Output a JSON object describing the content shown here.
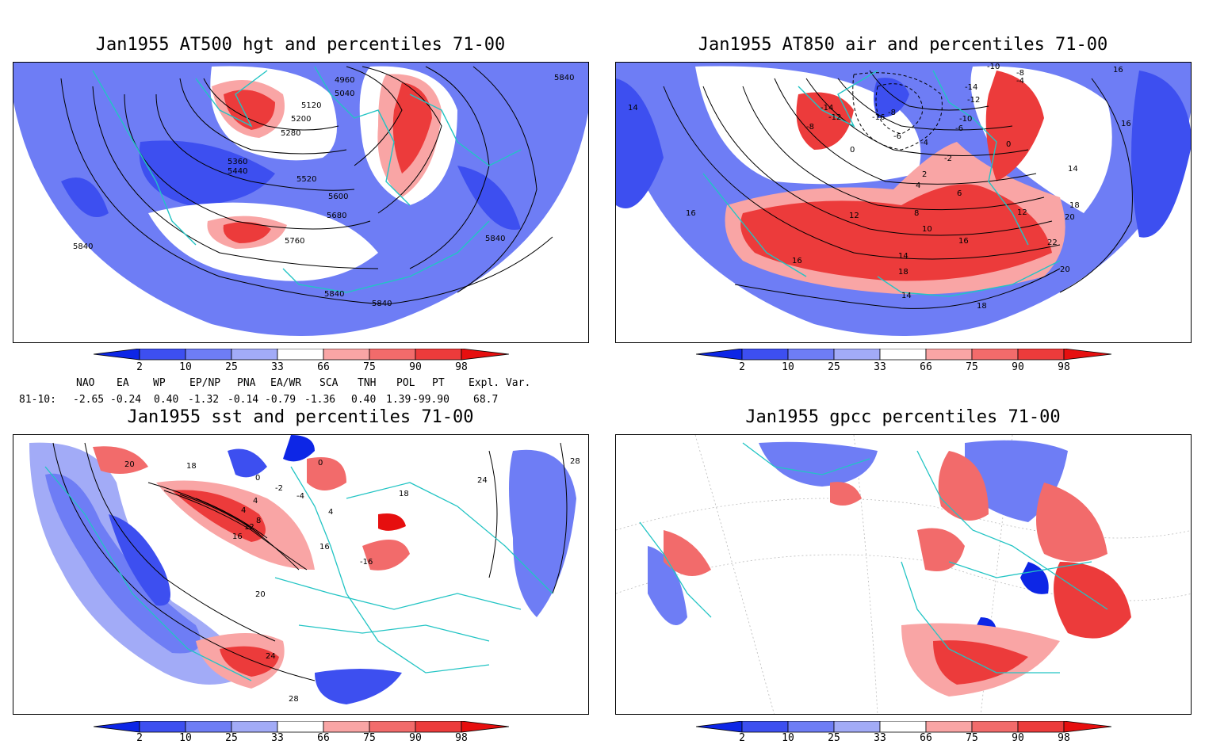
{
  "panels": [
    {
      "title": "Jan1955 AT500 hgt and percentiles 71-00",
      "contour_labels": [
        "4960",
        "5040",
        "5120",
        "5200",
        "5280",
        "5360",
        "5440",
        "5520",
        "5600",
        "5680",
        "5760",
        "5840",
        "5840",
        "5840",
        "5840",
        "5840"
      ]
    },
    {
      "title": "Jan1955 AT850 air and percentiles 71-00",
      "contour_labels": [
        "-10",
        "-8",
        "-14",
        "-12",
        "-4",
        "-14",
        "-12",
        "-16",
        "-8",
        "-10",
        "-6",
        "-8",
        "-4",
        "-6",
        "0",
        "-2",
        "2",
        "0",
        "4",
        "6",
        "8",
        "12",
        "12",
        "10",
        "16",
        "14",
        "14",
        "16",
        "18",
        "20",
        "20",
        "22",
        "18",
        "16",
        "14",
        "18",
        "16",
        "16",
        "14"
      ]
    },
    {
      "title": "Jan1955 sst and percentiles 71-00",
      "contour_labels": [
        "20",
        "18",
        "0",
        "4",
        "0",
        "-2",
        "-4",
        "4",
        "8",
        "12",
        "16",
        "4",
        "-16",
        "24",
        "20",
        "24",
        "28",
        "28",
        "16",
        "18"
      ]
    },
    {
      "title": "Jan1955 gpcc percentiles 71-00",
      "contour_labels": []
    }
  ],
  "colorbar": {
    "ticks": [
      "2",
      "10",
      "25",
      "33",
      "66",
      "75",
      "90",
      "98"
    ],
    "colors": [
      "#0d26e6",
      "#3d4ff0",
      "#6e7df5",
      "#a2abf7",
      "#ffffff",
      "#f9a5a5",
      "#f26b6b",
      "#ec3b3b",
      "#e60f0f"
    ]
  },
  "indices": {
    "headers": [
      "NAO",
      "EA",
      "WP",
      "EP/NP",
      "PNA",
      "EA/WR",
      "SCA",
      "TNH",
      "POL",
      "PT",
      "Expl. Var."
    ],
    "row_label": "81-10:",
    "values": [
      "-2.65",
      "-0.24",
      "0.40",
      "-1.32",
      "-0.14",
      "-0.79",
      "-1.36",
      "0.40",
      "1.39",
      "-99.90",
      "68.7"
    ]
  }
}
